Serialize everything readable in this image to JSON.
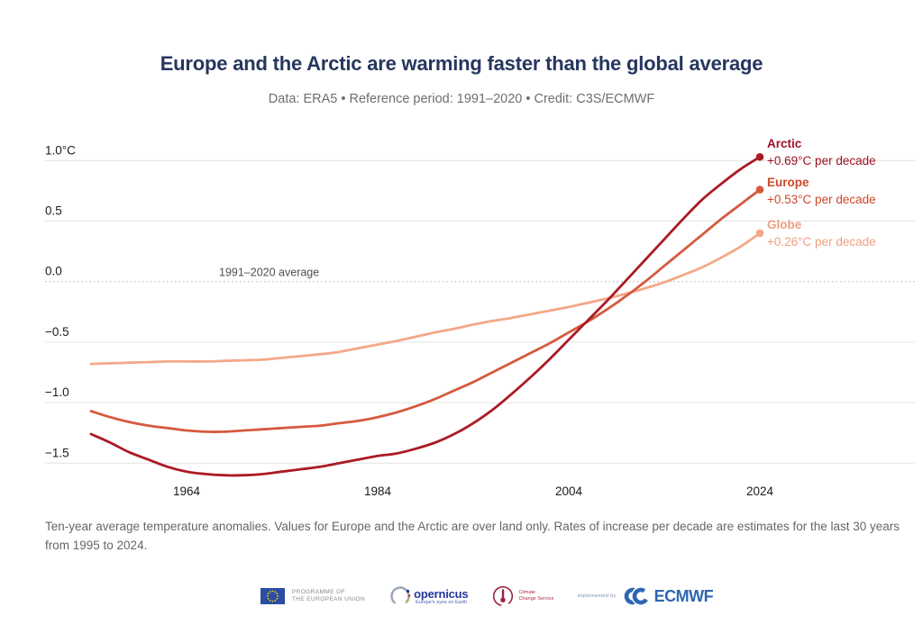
{
  "header": {
    "title": "Europe and the Arctic are warming faster than the global average",
    "subtitle": "Data: ERA5 • Reference period: 1991–2020 • Credit: C3S/ECMWF"
  },
  "chart_data": {
    "type": "line",
    "x": [
      1954,
      1956,
      1958,
      1960,
      1962,
      1964,
      1966,
      1968,
      1970,
      1972,
      1974,
      1976,
      1978,
      1980,
      1982,
      1984,
      1986,
      1988,
      1990,
      1992,
      1994,
      1996,
      1998,
      2000,
      2002,
      2004,
      2006,
      2008,
      2010,
      2012,
      2014,
      2016,
      2018,
      2020,
      2022,
      2024
    ],
    "series": [
      {
        "name": "Arctic",
        "rate_label": "+0.69°C per decade",
        "color": "#ab1a24",
        "text_color": "#9c1226",
        "values": [
          -1.26,
          -1.33,
          -1.41,
          -1.47,
          -1.53,
          -1.57,
          -1.59,
          -1.6,
          -1.6,
          -1.59,
          -1.57,
          -1.55,
          -1.53,
          -1.5,
          -1.47,
          -1.44,
          -1.42,
          -1.38,
          -1.33,
          -1.26,
          -1.17,
          -1.06,
          -0.93,
          -0.79,
          -0.64,
          -0.48,
          -0.32,
          -0.16,
          0.01,
          0.18,
          0.35,
          0.52,
          0.68,
          0.81,
          0.93,
          1.03
        ]
      },
      {
        "name": "Europe",
        "rate_label": "+0.53°C per decade",
        "color": "#d55a3e",
        "text_color": "#cc482a",
        "values": [
          -1.07,
          -1.12,
          -1.16,
          -1.19,
          -1.21,
          -1.23,
          -1.24,
          -1.24,
          -1.23,
          -1.22,
          -1.21,
          -1.2,
          -1.19,
          -1.17,
          -1.15,
          -1.12,
          -1.08,
          -1.03,
          -0.97,
          -0.9,
          -0.83,
          -0.75,
          -0.67,
          -0.59,
          -0.51,
          -0.42,
          -0.33,
          -0.23,
          -0.12,
          0.0,
          0.13,
          0.26,
          0.39,
          0.52,
          0.64,
          0.76
        ]
      },
      {
        "name": "Globe",
        "rate_label": "+0.26°C per decade",
        "color": "#f4a888",
        "text_color": "#ef9f80",
        "values": [
          -0.68,
          -0.675,
          -0.67,
          -0.665,
          -0.66,
          -0.66,
          -0.66,
          -0.655,
          -0.65,
          -0.645,
          -0.63,
          -0.615,
          -0.6,
          -0.58,
          -0.55,
          -0.52,
          -0.49,
          -0.455,
          -0.42,
          -0.39,
          -0.355,
          -0.325,
          -0.3,
          -0.27,
          -0.24,
          -0.21,
          -0.175,
          -0.14,
          -0.1,
          -0.055,
          -0.005,
          0.055,
          0.12,
          0.2,
          0.29,
          0.4
        ]
      }
    ],
    "x_ticks": [
      1964,
      1984,
      2004,
      2024
    ],
    "y_ticks": [
      {
        "value": 1.0,
        "label": "1.0°C"
      },
      {
        "value": 0.5,
        "label": "0.5"
      },
      {
        "value": 0.0,
        "label": "0.0"
      },
      {
        "value": -0.5,
        "label": "−0.5"
      },
      {
        "value": -1.0,
        "label": "−1.0"
      },
      {
        "value": -1.5,
        "label": "−1.5"
      }
    ],
    "ylim": [
      -1.72,
      1.12
    ],
    "xlim": [
      1954,
      2024
    ],
    "grid": "horizontal",
    "zero_line_annotation": "1991–2020 average",
    "title": "Europe and the Arctic are warming faster than the global average",
    "xlabel": "",
    "ylabel": ""
  },
  "footnote": "Ten-year average temperature anomalies. Values for Europe and the Arctic are over land only. Rates of increase per decade are estimates for the last 30 years from 1995 to 2024.",
  "footer_logos": {
    "eu": {
      "line1": "PROGRAMME OF",
      "line2": "THE EUROPEAN UNION"
    },
    "copernicus": {
      "text": "opernicus",
      "tagline": "Europe's eyes on Earth"
    },
    "c3s": {
      "line1": "Climate",
      "line2": "Change Service"
    },
    "implemented_by": "implemented by",
    "ecmwf": "ECMWF"
  }
}
